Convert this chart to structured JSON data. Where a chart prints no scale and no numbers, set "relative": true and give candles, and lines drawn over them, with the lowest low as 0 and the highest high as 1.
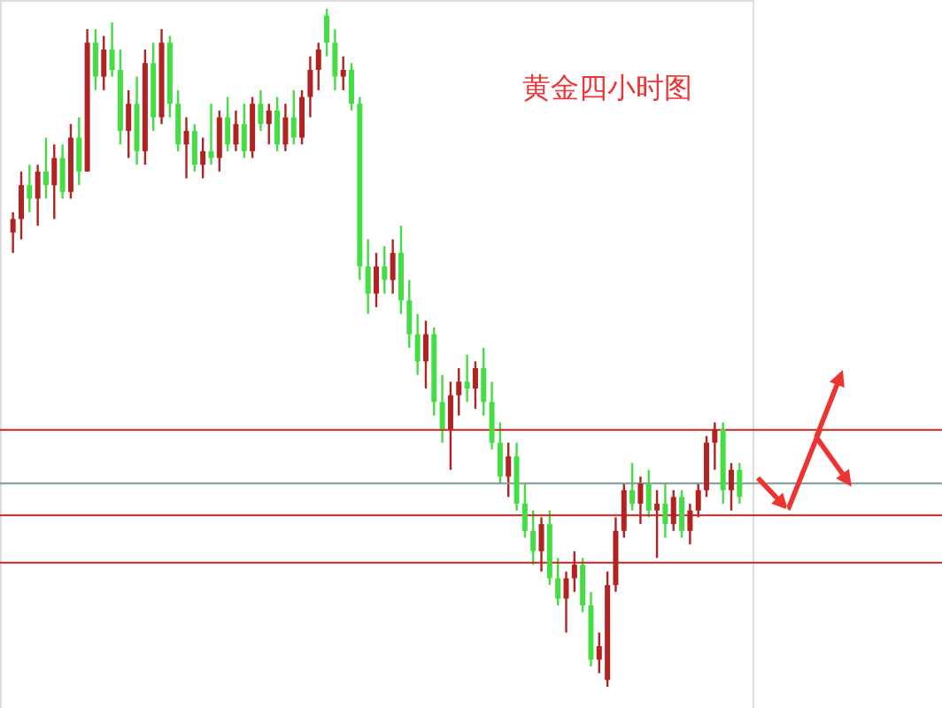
{
  "chart_data": {
    "type": "candlestick",
    "title": "黄金四小时图",
    "relative": true,
    "categories": [
      null,
      null,
      null,
      null,
      null,
      null,
      null,
      null,
      null,
      null,
      null,
      null,
      null,
      null,
      null,
      null,
      null,
      null,
      null,
      null,
      null,
      null,
      null,
      null,
      null,
      null,
      null,
      null,
      null,
      null,
      null,
      null,
      null,
      null,
      null,
      null,
      null,
      null,
      null,
      null,
      null,
      null,
      null,
      null,
      null,
      null,
      null,
      null,
      null,
      null,
      null,
      null,
      null,
      null,
      null,
      null,
      null,
      null,
      null,
      null,
      null,
      null,
      null,
      null,
      null,
      null,
      null,
      null,
      null,
      null,
      null,
      null,
      null,
      null,
      null,
      null,
      null,
      null,
      null,
      null,
      null,
      null,
      null,
      null,
      null,
      null,
      null,
      null,
      null
    ],
    "ohlc": [
      [
        0.67,
        0.7,
        0.64,
        0.69
      ],
      [
        0.69,
        0.76,
        0.66,
        0.74
      ],
      [
        0.74,
        0.77,
        0.7,
        0.72
      ],
      [
        0.72,
        0.77,
        0.68,
        0.76
      ],
      [
        0.76,
        0.81,
        0.72,
        0.74
      ],
      [
        0.74,
        0.8,
        0.69,
        0.78
      ],
      [
        0.78,
        0.8,
        0.72,
        0.73
      ],
      [
        0.73,
        0.83,
        0.72,
        0.81
      ],
      [
        0.81,
        0.84,
        0.74,
        0.76
      ],
      [
        0.76,
        0.97,
        0.76,
        0.95
      ],
      [
        0.95,
        0.97,
        0.88,
        0.9
      ],
      [
        0.9,
        0.96,
        0.88,
        0.94
      ],
      [
        0.94,
        0.98,
        0.9,
        0.91
      ],
      [
        0.91,
        0.94,
        0.8,
        0.82
      ],
      [
        0.82,
        0.88,
        0.78,
        0.86
      ],
      [
        0.86,
        0.9,
        0.77,
        0.79
      ],
      [
        0.79,
        0.94,
        0.77,
        0.92
      ],
      [
        0.92,
        0.95,
        0.82,
        0.84
      ],
      [
        0.84,
        0.97,
        0.83,
        0.95
      ],
      [
        0.95,
        0.96,
        0.84,
        0.86
      ],
      [
        0.86,
        0.88,
        0.79,
        0.8
      ],
      [
        0.8,
        0.84,
        0.75,
        0.82
      ],
      [
        0.82,
        0.83,
        0.76,
        0.77
      ],
      [
        0.77,
        0.81,
        0.75,
        0.79
      ],
      [
        0.79,
        0.86,
        0.77,
        0.78
      ],
      [
        0.78,
        0.85,
        0.76,
        0.84
      ],
      [
        0.84,
        0.87,
        0.79,
        0.8
      ],
      [
        0.8,
        0.85,
        0.79,
        0.83
      ],
      [
        0.83,
        0.86,
        0.78,
        0.79
      ],
      [
        0.79,
        0.87,
        0.78,
        0.86
      ],
      [
        0.86,
        0.88,
        0.82,
        0.83
      ],
      [
        0.83,
        0.86,
        0.8,
        0.85
      ],
      [
        0.85,
        0.87,
        0.79,
        0.8
      ],
      [
        0.8,
        0.86,
        0.79,
        0.84
      ],
      [
        0.84,
        0.88,
        0.8,
        0.81
      ],
      [
        0.81,
        0.88,
        0.8,
        0.87
      ],
      [
        0.87,
        0.93,
        0.84,
        0.91
      ],
      [
        0.91,
        0.95,
        0.88,
        0.94
      ],
      [
        0.99,
        1.0,
        0.93,
        0.95
      ],
      [
        0.95,
        0.97,
        0.88,
        0.9
      ],
      [
        0.9,
        0.93,
        0.88,
        0.91
      ],
      [
        0.91,
        0.92,
        0.85,
        0.86
      ],
      [
        0.86,
        0.87,
        0.6,
        0.62
      ],
      [
        0.62,
        0.66,
        0.55,
        0.58
      ],
      [
        0.58,
        0.64,
        0.56,
        0.62
      ],
      [
        0.62,
        0.65,
        0.58,
        0.6
      ],
      [
        0.6,
        0.66,
        0.58,
        0.64
      ],
      [
        0.64,
        0.68,
        0.55,
        0.57
      ],
      [
        0.57,
        0.6,
        0.5,
        0.52
      ],
      [
        0.52,
        0.55,
        0.46,
        0.48
      ],
      [
        0.48,
        0.54,
        0.44,
        0.52
      ],
      [
        0.52,
        0.53,
        0.4,
        0.42
      ],
      [
        0.42,
        0.46,
        0.36,
        0.38
      ],
      [
        0.38,
        0.45,
        0.32,
        0.43
      ],
      [
        0.43,
        0.47,
        0.4,
        0.45
      ],
      [
        0.45,
        0.49,
        0.42,
        0.44
      ],
      [
        0.44,
        0.48,
        0.41,
        0.47
      ],
      [
        0.47,
        0.5,
        0.4,
        0.42
      ],
      [
        0.42,
        0.45,
        0.35,
        0.36
      ],
      [
        0.36,
        0.39,
        0.3,
        0.31
      ],
      [
        0.31,
        0.36,
        0.28,
        0.34
      ],
      [
        0.34,
        0.36,
        0.26,
        0.27
      ],
      [
        0.27,
        0.3,
        0.22,
        0.23
      ],
      [
        0.23,
        0.26,
        0.18,
        0.2
      ],
      [
        0.2,
        0.25,
        0.17,
        0.24
      ],
      [
        0.24,
        0.26,
        0.15,
        0.16
      ],
      [
        0.16,
        0.19,
        0.12,
        0.13
      ],
      [
        0.13,
        0.17,
        0.08,
        0.16
      ],
      [
        0.16,
        0.2,
        0.14,
        0.18
      ],
      [
        0.18,
        0.19,
        0.11,
        0.12
      ],
      [
        0.12,
        0.14,
        0.03,
        0.04
      ],
      [
        0.04,
        0.08,
        0.02,
        0.06
      ],
      [
        0.01,
        0.17,
        0.0,
        0.15
      ],
      [
        0.15,
        0.25,
        0.14,
        0.23
      ],
      [
        0.23,
        0.3,
        0.22,
        0.29
      ],
      [
        0.29,
        0.33,
        0.26,
        0.27
      ],
      [
        0.27,
        0.31,
        0.24,
        0.3
      ],
      [
        0.3,
        0.32,
        0.25,
        0.26
      ],
      [
        0.26,
        0.29,
        0.19,
        0.27
      ],
      [
        0.27,
        0.3,
        0.22,
        0.24
      ],
      [
        0.24,
        0.29,
        0.23,
        0.28
      ],
      [
        0.28,
        0.29,
        0.22,
        0.23
      ],
      [
        0.23,
        0.27,
        0.21,
        0.26
      ],
      [
        0.26,
        0.3,
        0.25,
        0.29
      ],
      [
        0.29,
        0.37,
        0.28,
        0.36
      ],
      [
        0.36,
        0.39,
        0.32,
        0.38
      ],
      [
        0.38,
        0.39,
        0.27,
        0.29
      ],
      [
        0.29,
        0.33,
        0.26,
        0.32
      ],
      [
        0.32,
        0.33,
        0.27,
        0.28
      ]
    ],
    "colors": [
      "#b22222",
      "#b22222",
      "#44dd44",
      "#b22222",
      "#44dd44",
      "#b22222",
      "#44dd44",
      "#b22222",
      "#44dd44",
      "#b22222",
      "#44dd44",
      "#b22222",
      "#44dd44",
      "#44dd44",
      "#b22222",
      "#44dd44",
      "#b22222",
      "#44dd44",
      "#b22222",
      "#44dd44",
      "#44dd44",
      "#b22222",
      "#44dd44",
      "#b22222",
      "#44dd44",
      "#b22222",
      "#44dd44",
      "#b22222",
      "#44dd44",
      "#b22222",
      "#44dd44",
      "#b22222",
      "#44dd44",
      "#b22222",
      "#44dd44",
      "#b22222",
      "#b22222",
      "#b22222",
      "#44dd44",
      "#44dd44",
      "#b22222",
      "#44dd44",
      "#44dd44",
      "#44dd44",
      "#b22222",
      "#44dd44",
      "#b22222",
      "#44dd44",
      "#44dd44",
      "#44dd44",
      "#b22222",
      "#44dd44",
      "#44dd44",
      "#b22222",
      "#b22222",
      "#44dd44",
      "#b22222",
      "#44dd44",
      "#44dd44",
      "#44dd44",
      "#b22222",
      "#44dd44",
      "#44dd44",
      "#44dd44",
      "#b22222",
      "#44dd44",
      "#44dd44",
      "#b22222",
      "#b22222",
      "#44dd44",
      "#44dd44",
      "#b22222",
      "#b22222",
      "#b22222",
      "#b22222",
      "#44dd44",
      "#b22222",
      "#44dd44",
      "#b22222",
      "#44dd44",
      "#b22222",
      "#44dd44",
      "#b22222",
      "#b22222",
      "#b22222",
      "#b22222",
      "#44dd44",
      "#b22222",
      "#44dd44"
    ],
    "ref_lines": [
      {
        "axis": "y",
        "value": 0.379,
        "color": "#cc2222"
      },
      {
        "axis": "y",
        "value": 0.3,
        "color": "#7a9a9a"
      },
      {
        "axis": "y",
        "value": 0.253,
        "color": "#cc2222"
      },
      {
        "axis": "y",
        "value": 0.183,
        "color": "#cc2222"
      }
    ]
  }
}
